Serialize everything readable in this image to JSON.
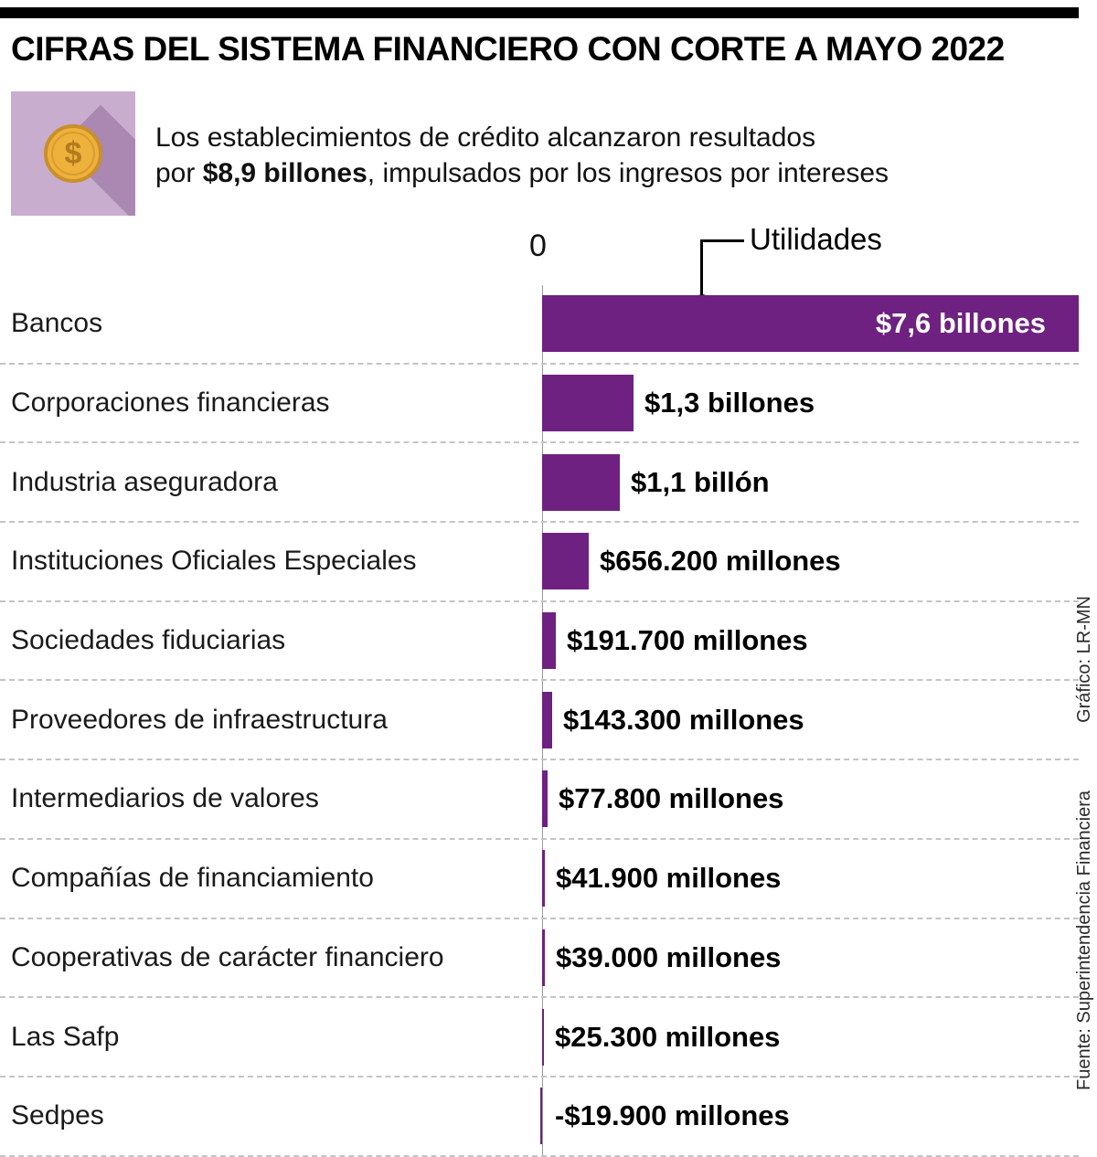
{
  "header": {
    "title": "CIFRAS DEL SISTEMA FINANCIERO CON CORTE A MAYO 2022",
    "subtitle_line1": "Los establecimientos de crédito alcanzaron resultados",
    "subtitle_line2_prefix": "por ",
    "subtitle_line2_bold": "$8,9 billones",
    "subtitle_line2_suffix": ", impulsados por los ingresos por intereses"
  },
  "annotations": {
    "series_label": "Utilidades",
    "zero_label": "0"
  },
  "credits": {
    "graphic": "Gráfico: LR-MN",
    "source": "Fuente: Superintendencia Financiera"
  },
  "colors": {
    "bar": "#6e2180",
    "bar_label_inside": "#ffffff",
    "icon_box": "#c9adcf",
    "coin": "#eeb13c",
    "top_bar": "#000000"
  },
  "chart_data": {
    "type": "bar",
    "orientation": "horizontal",
    "title": "CIFRAS DEL SISTEMA FINANCIERO CON CORTE A MAYO 2022",
    "series_label": "Utilidades",
    "unit": "billones de pesos",
    "xlim": [
      0,
      7.6
    ],
    "grid": false,
    "categories": [
      "Bancos",
      "Corporaciones financieras",
      "Industria aseguradora",
      "Instituciones Oficiales Especiales",
      "Sociedades fiduciarias",
      "Proveedores de infraestructura",
      "Intermediarios de valores",
      "Compañías de financiamiento",
      "Cooperativas de carácter financiero",
      "Las Safp",
      "Sedpes"
    ],
    "values_billones": [
      7.6,
      1.3,
      1.1,
      0.6562,
      0.1917,
      0.1433,
      0.0778,
      0.0419,
      0.039,
      0.0253,
      -0.0199
    ],
    "value_labels": [
      "$7,6 billones",
      "$1,3 billones",
      "$1,1 billón",
      "$656.200 millones",
      "$191.700 millones",
      "$143.300 millones",
      "$77.800 millones",
      "$41.900 millones",
      "$39.000 millones",
      "$25.300 millones",
      "-$19.900 millones"
    ]
  }
}
